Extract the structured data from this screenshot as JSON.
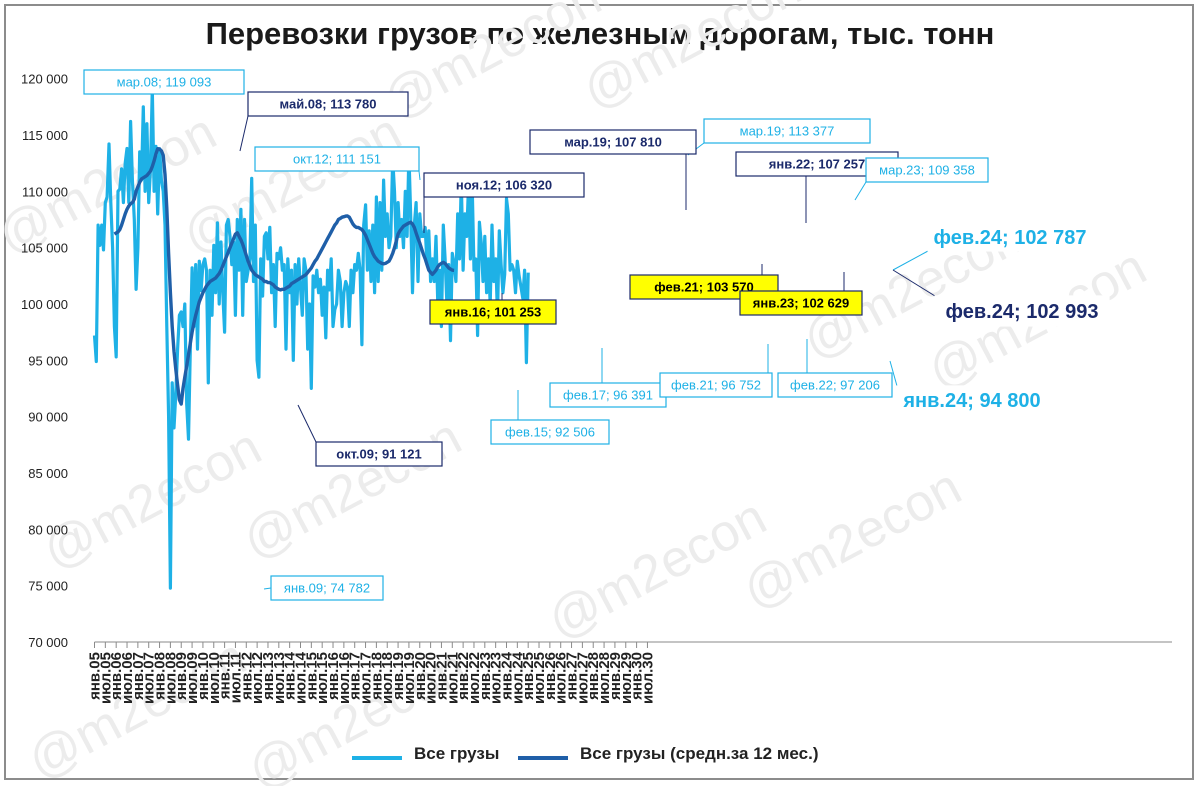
{
  "title": "Перевозки грузов по железным дорогам, тыс. тонн",
  "watermark": "@m2econ",
  "colors": {
    "monthly": "#1eb1e6",
    "avg": "#1f5fa8",
    "highlight": "#ffff00",
    "dark_label": "#1b2a6b"
  },
  "chart_data": {
    "type": "line",
    "title": "Перевозки грузов по железным дорогам, тыс. тонн",
    "ylim": [
      70000,
      120000
    ],
    "yticks": [
      "70 000",
      "75 000",
      "80 000",
      "85 000",
      "90 000",
      "95 000",
      "100 000",
      "105 000",
      "110 000",
      "115 000",
      "120 000"
    ],
    "xtick_labels": [
      "янв.05",
      "июл.05",
      "янв.06",
      "июл.06",
      "янв.07",
      "июл.07",
      "янв.08",
      "июл.08",
      "янв.09",
      "июл.09",
      "янв.10",
      "июл.10",
      "янв.11",
      "июл.11",
      "янв.12",
      "июл.12",
      "янв.13",
      "июл.13",
      "янв.14",
      "июл.14",
      "янв.15",
      "июл.15",
      "янв.16",
      "июл.16",
      "янв.17",
      "июл.17",
      "янв.18",
      "июл.18",
      "янв.19",
      "июл.19",
      "янв.20",
      "июл.20",
      "янв.21",
      "июл.21",
      "янв.22",
      "июл.22",
      "янв.23",
      "июл.23",
      "янв.24",
      "июл.24",
      "янв.25",
      "июл.25",
      "янв.26",
      "июл.26",
      "янв.27",
      "июл.27",
      "янв.28",
      "июл.28",
      "янв.29",
      "июл.29",
      "янв.30",
      "июл.30"
    ],
    "x_start": "2005-01",
    "series": [
      {
        "name": "Все грузы",
        "start": "2005-01",
        "values": [
          97200,
          94900,
          107000,
          105200,
          107000,
          104800,
          109000,
          109500,
          114200,
          109000,
          105000,
          98000,
          95300,
          110000,
          110200,
          112000,
          109000,
          112500,
          113800,
          109000,
          116200,
          111000,
          107500,
          101300,
          105000,
          113500,
          111000,
          117500,
          110000,
          116000,
          109000,
          112000,
          119093,
          110000,
          114000,
          108000,
          113780,
          111000,
          110000,
          107000,
          98000,
          90000,
          74782,
          93000,
          89000,
          92000,
          96000,
          99000,
          99300,
          98000,
          100000,
          91121,
          88000,
          96000,
          103200,
          98000,
          103500,
          96000,
          103800,
          101200,
          103500,
          104000,
          103000,
          93000,
          103000,
          99000,
          105200,
          101000,
          107200,
          100000,
          105500,
          101000,
          97500,
          107000,
          107500,
          106000,
          103500,
          105500,
          99000,
          107500,
          103000,
          108400,
          99000,
          107500,
          102000,
          103000,
          104000,
          111151,
          102000,
          107000,
          95000,
          93500,
          104000,
          100700,
          106000,
          106320,
          104000,
          106800,
          101000,
          103500,
          98000,
          104500,
          104000,
          105000,
          103000,
          103500,
          96000,
          104000,
          101000,
          103000,
          95000,
          103500,
          100000,
          104000,
          101500,
          99000,
          104000,
          103000,
          96000,
          100000,
          92506,
          102500,
          101500,
          103000,
          101000,
          102200,
          99000,
          101500,
          97000,
          103000,
          101253,
          104000,
          98000,
          99500,
          100000,
          103000,
          102000,
          98000,
          101000,
          102000,
          101500,
          98000,
          103000,
          101000,
          103500,
          103000,
          104500,
          103000,
          96391,
          107000,
          108800,
          103000,
          106500,
          102000,
          107000,
          101000,
          109500,
          102000,
          109000,
          103000,
          111000,
          106000,
          108000,
          105000,
          106000,
          112900,
          110000,
          105000,
          109000,
          106000,
          107500,
          105000,
          110000,
          106000,
          113377,
          107810,
          101000,
          107000,
          109000,
          102000,
          108000,
          106000,
          106000,
          106800,
          103500,
          106500,
          102000,
          104000,
          102000,
          106000,
          100000,
          103000,
          98000,
          107000,
          104000,
          100000,
          103500,
          96752,
          104500,
          103570,
          102000,
          108000,
          104000,
          111000,
          103000,
          108000,
          106000,
          110500,
          104000,
          110500,
          103000,
          104000,
          97206,
          107257,
          105500,
          102000,
          106000,
          101000,
          104000,
          100000,
          107000,
          102000,
          104000,
          99000,
          106500,
          103500,
          101000,
          102629,
          109358,
          108000,
          103000,
          103500,
          103000,
          101000,
          103800,
          102500,
          101500,
          100500,
          103000,
          94800,
          102787
        ]
      },
      {
        "name": "Все грузы (средн.за 12 мес.)",
        "start": "2005-12",
        "values": [
          106200,
          106300,
          106400,
          106600,
          107000,
          107500,
          108000,
          108400,
          108700,
          108900,
          109000,
          109300,
          110000,
          110400,
          110800,
          111100,
          111200,
          111300,
          111400,
          111600,
          111800,
          112200,
          112700,
          113300,
          113780,
          113750,
          113600,
          113200,
          111500,
          108500,
          104500,
          101000,
          98000,
          95800,
          94200,
          92800,
          91500,
          91121,
          92500,
          93500,
          94500,
          95500,
          96500,
          97500,
          98300,
          99000,
          99600,
          100200,
          100600,
          101000,
          101300,
          101600,
          101800,
          102000,
          102100,
          102200,
          102300,
          102500,
          102700,
          103000,
          103400,
          103800,
          104200,
          104600,
          105000,
          105400,
          105800,
          106200,
          106320,
          106000,
          105700,
          105300,
          104800,
          104300,
          103800,
          103400,
          103000,
          102800,
          102600,
          102500,
          102400,
          102300,
          102200,
          102000,
          102000,
          101900,
          101900,
          101800,
          101700,
          101500,
          101400,
          101300,
          101253,
          101300,
          101300,
          101400,
          101500,
          101600,
          101800,
          101900,
          102000,
          102100,
          102200,
          102300,
          102400,
          102500,
          102600,
          102800,
          103000,
          103200,
          103500,
          103800,
          104000,
          104300,
          104600,
          104900,
          105200,
          105500,
          105800,
          106100,
          106400,
          106700,
          107000,
          107200,
          107500,
          107600,
          107700,
          107750,
          107800,
          107810,
          107700,
          107400,
          107100,
          106900,
          106800,
          106800,
          106700,
          106600,
          106400,
          106100,
          105700,
          105300,
          104900,
          104500,
          104200,
          104000,
          103800,
          103700,
          103600,
          103570,
          103600,
          103700,
          103800,
          104100,
          104500,
          105000,
          105600,
          106200,
          106500,
          106700,
          106900,
          107000,
          107100,
          107200,
          107257,
          107100,
          106800,
          106300,
          105800,
          105400,
          104900,
          104400,
          104000,
          103500,
          103000,
          102800,
          102629,
          102800,
          103000,
          103300,
          103500,
          103600,
          103700,
          103600,
          103400,
          103200,
          103100,
          103000,
          102993
        ]
      }
    ],
    "callouts": [
      {
        "label": "мар.08; 119 093",
        "style": "light"
      },
      {
        "label": "май.08;  113 780",
        "style": "dark"
      },
      {
        "label": "окт.12; 111 151",
        "style": "light"
      },
      {
        "label": "ноя.12;  106 320",
        "style": "dark"
      },
      {
        "label": "мар.19;  107 810",
        "style": "dark"
      },
      {
        "label": "мар.19; 113 377",
        "style": "light"
      },
      {
        "label": "янв.22;  107 257",
        "style": "dark"
      },
      {
        "label": "мар.23; 109 358",
        "style": "light"
      },
      {
        "label": "фев.24; 102 787",
        "style": "light-big"
      },
      {
        "label": "янв.16;  101 253",
        "style": "yellow"
      },
      {
        "label": "фев.21;  103 570",
        "style": "yellow"
      },
      {
        "label": "янв.23;  102 629",
        "style": "yellow"
      },
      {
        "label": "фев.24;   102 993",
        "style": "dark-big"
      },
      {
        "label": "фев.17; 96 391",
        "style": "light"
      },
      {
        "label": "фев.21; 96 752",
        "style": "light"
      },
      {
        "label": "фев.22; 97 206",
        "style": "light"
      },
      {
        "label": "янв.24; 94 800",
        "style": "light-big"
      },
      {
        "label": "фев.15; 92 506",
        "style": "light"
      },
      {
        "label": "окт.09;  91 121",
        "style": "dark"
      },
      {
        "label": "янв.09; 74 782",
        "style": "light"
      }
    ],
    "legend": {
      "position": "bottom"
    },
    "grid": false
  }
}
